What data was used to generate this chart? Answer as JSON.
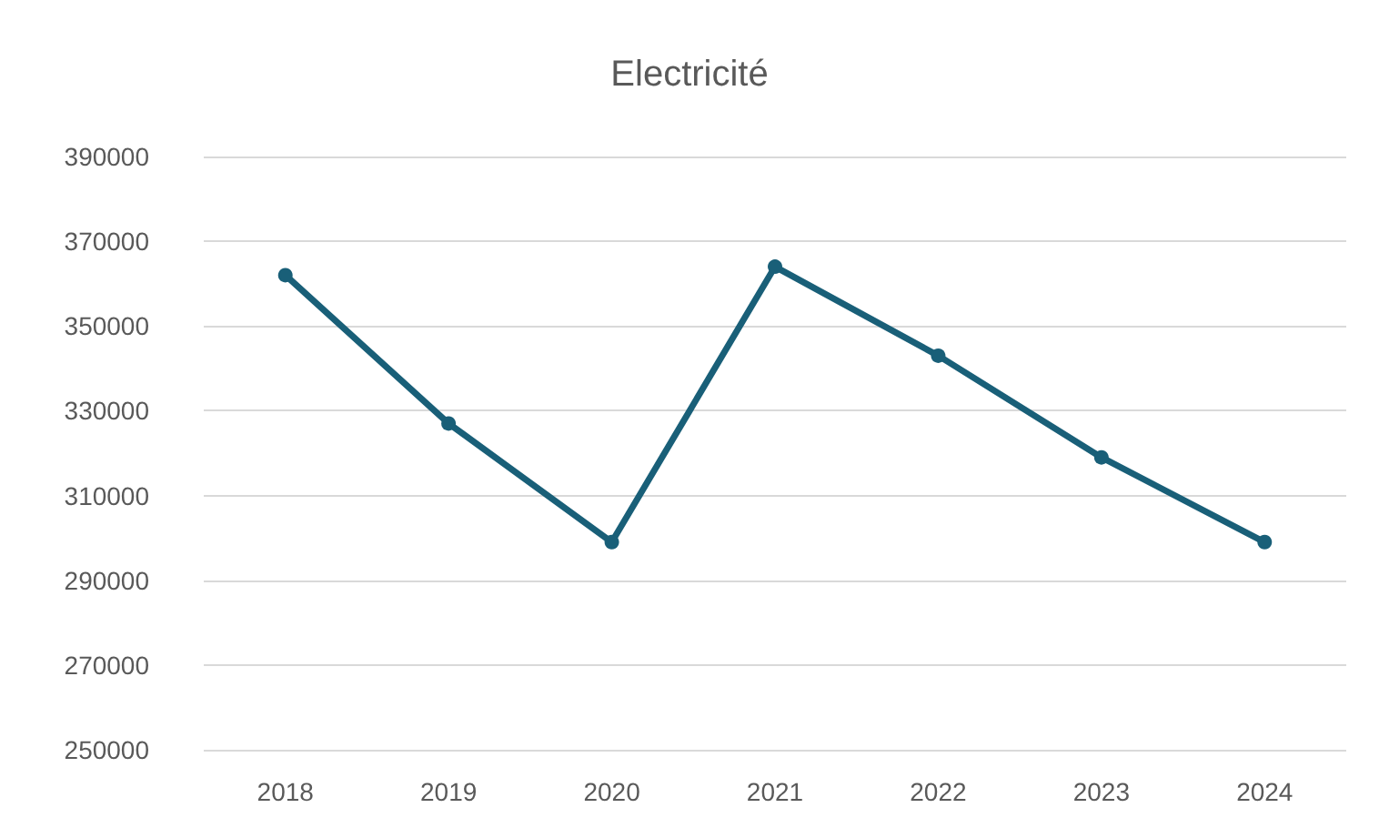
{
  "chart_data": {
    "type": "line",
    "title": "Electricité",
    "categories": [
      "2018",
      "2019",
      "2020",
      "2021",
      "2022",
      "2023",
      "2024"
    ],
    "series": [
      {
        "color": "#195f78",
        "values": [
          362000,
          327000,
          299000,
          364000,
          343000,
          319000,
          299000
        ]
      }
    ],
    "ylim": [
      250000,
      390000
    ],
    "yticks": [
      250000,
      270000,
      290000,
      310000,
      330000,
      350000,
      370000,
      390000
    ],
    "grid": "y",
    "marker": "circle",
    "line_style": "solid"
  }
}
